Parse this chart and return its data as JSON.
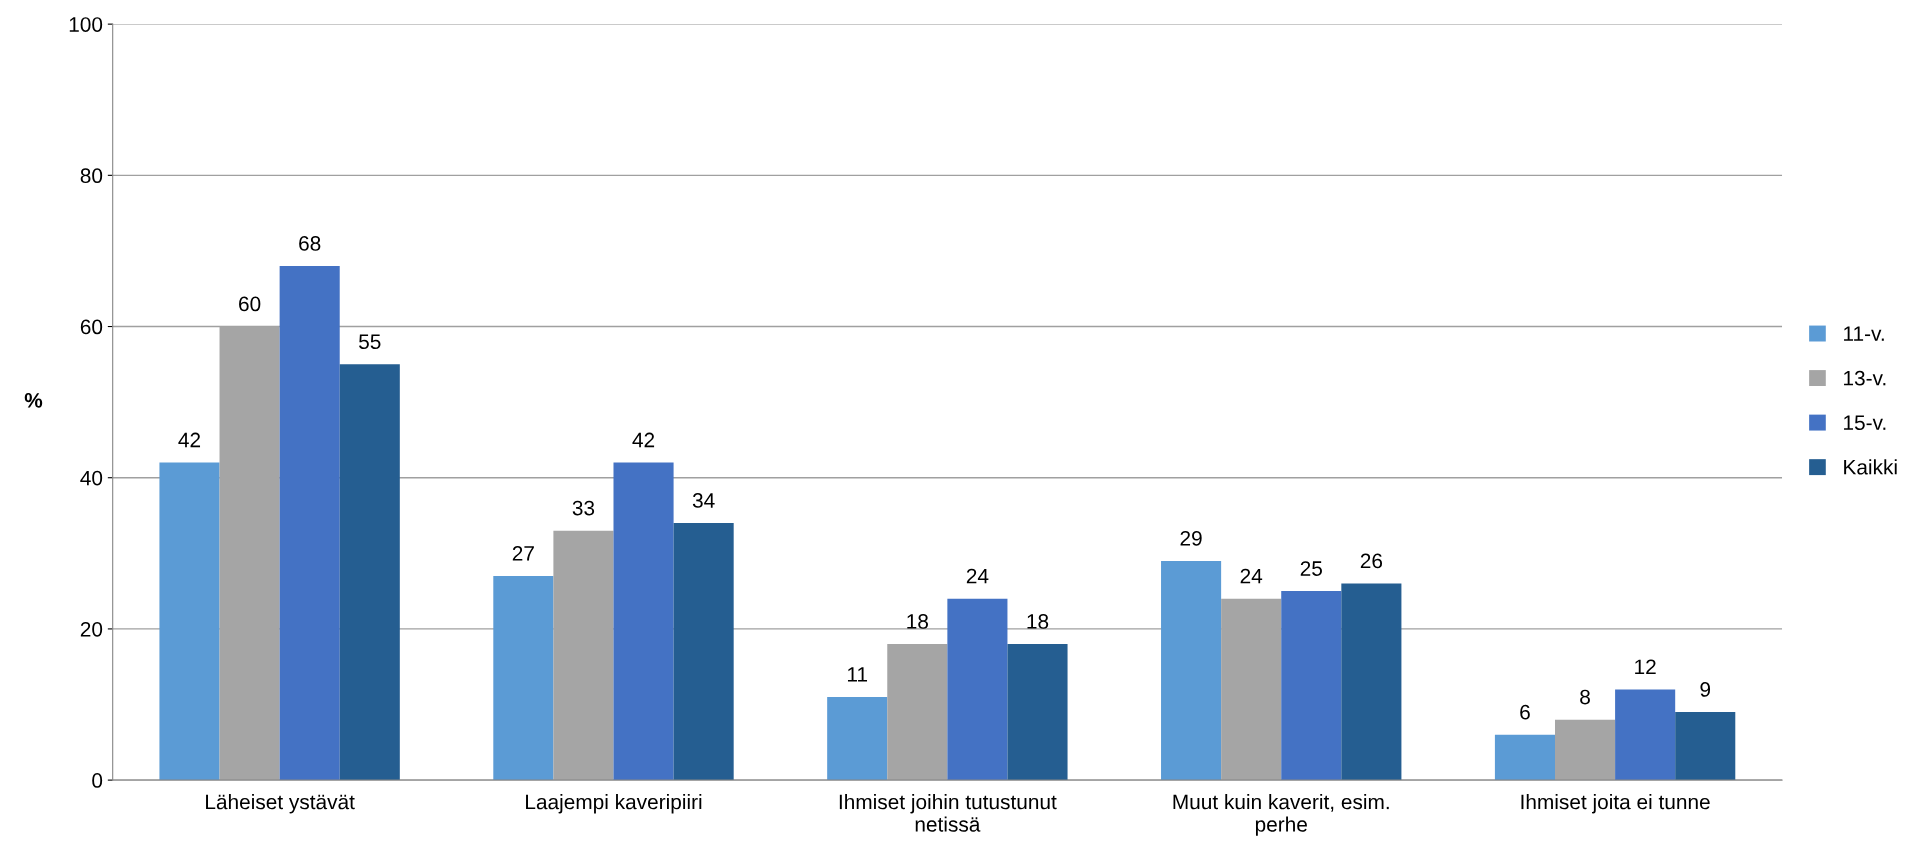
{
  "chart_data": {
    "type": "bar",
    "ylabel": "%",
    "categories": [
      "Läheiset ystävät",
      "Laajempi kaveripiiri",
      "Ihmiset joihin tutustunut\nnetissä",
      "Muut kuin kaverit, esim.\nperhe",
      "Ihmiset joita ei tunne"
    ],
    "series": [
      {
        "name": "11-v.",
        "color": "#5b9bd5",
        "values": [
          42,
          27,
          11,
          29,
          6
        ]
      },
      {
        "name": "13-v.",
        "color": "#a5a5a5",
        "values": [
          60,
          33,
          18,
          24,
          8
        ]
      },
      {
        "name": "15-v.",
        "color": "#4472c4",
        "values": [
          68,
          42,
          24,
          25,
          12
        ]
      },
      {
        "name": "Kaikki",
        "color": "#255e91",
        "values": [
          55,
          34,
          18,
          26,
          9
        ]
      }
    ],
    "ylim": [
      0,
      100
    ],
    "yticks": [
      0,
      20,
      40,
      60,
      80,
      100
    ],
    "grid": "y",
    "legend": "right",
    "data_labels": true
  }
}
